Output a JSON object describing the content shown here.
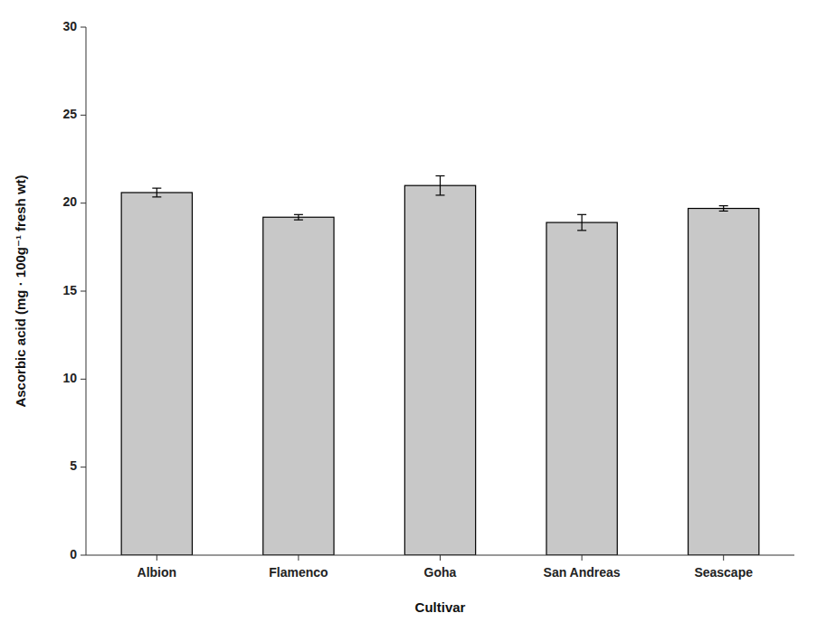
{
  "chart_data": {
    "type": "bar",
    "categories": [
      "Albion",
      "Flamenco",
      "Goha",
      "San Andreas",
      "Seascape"
    ],
    "values": [
      20.6,
      19.2,
      21.0,
      18.9,
      19.7
    ],
    "errors": [
      0.25,
      0.15,
      0.55,
      0.45,
      0.15
    ],
    "color": "#c8c8c8",
    "xlabel": "Cultivar",
    "ylabel": "Ascorbic acid (mg · 100g⁻¹ fresh wt)",
    "ylim": [
      0,
      30
    ],
    "yticks": [
      0,
      5,
      10,
      15,
      20,
      25,
      30
    ],
    "grid": false
  }
}
